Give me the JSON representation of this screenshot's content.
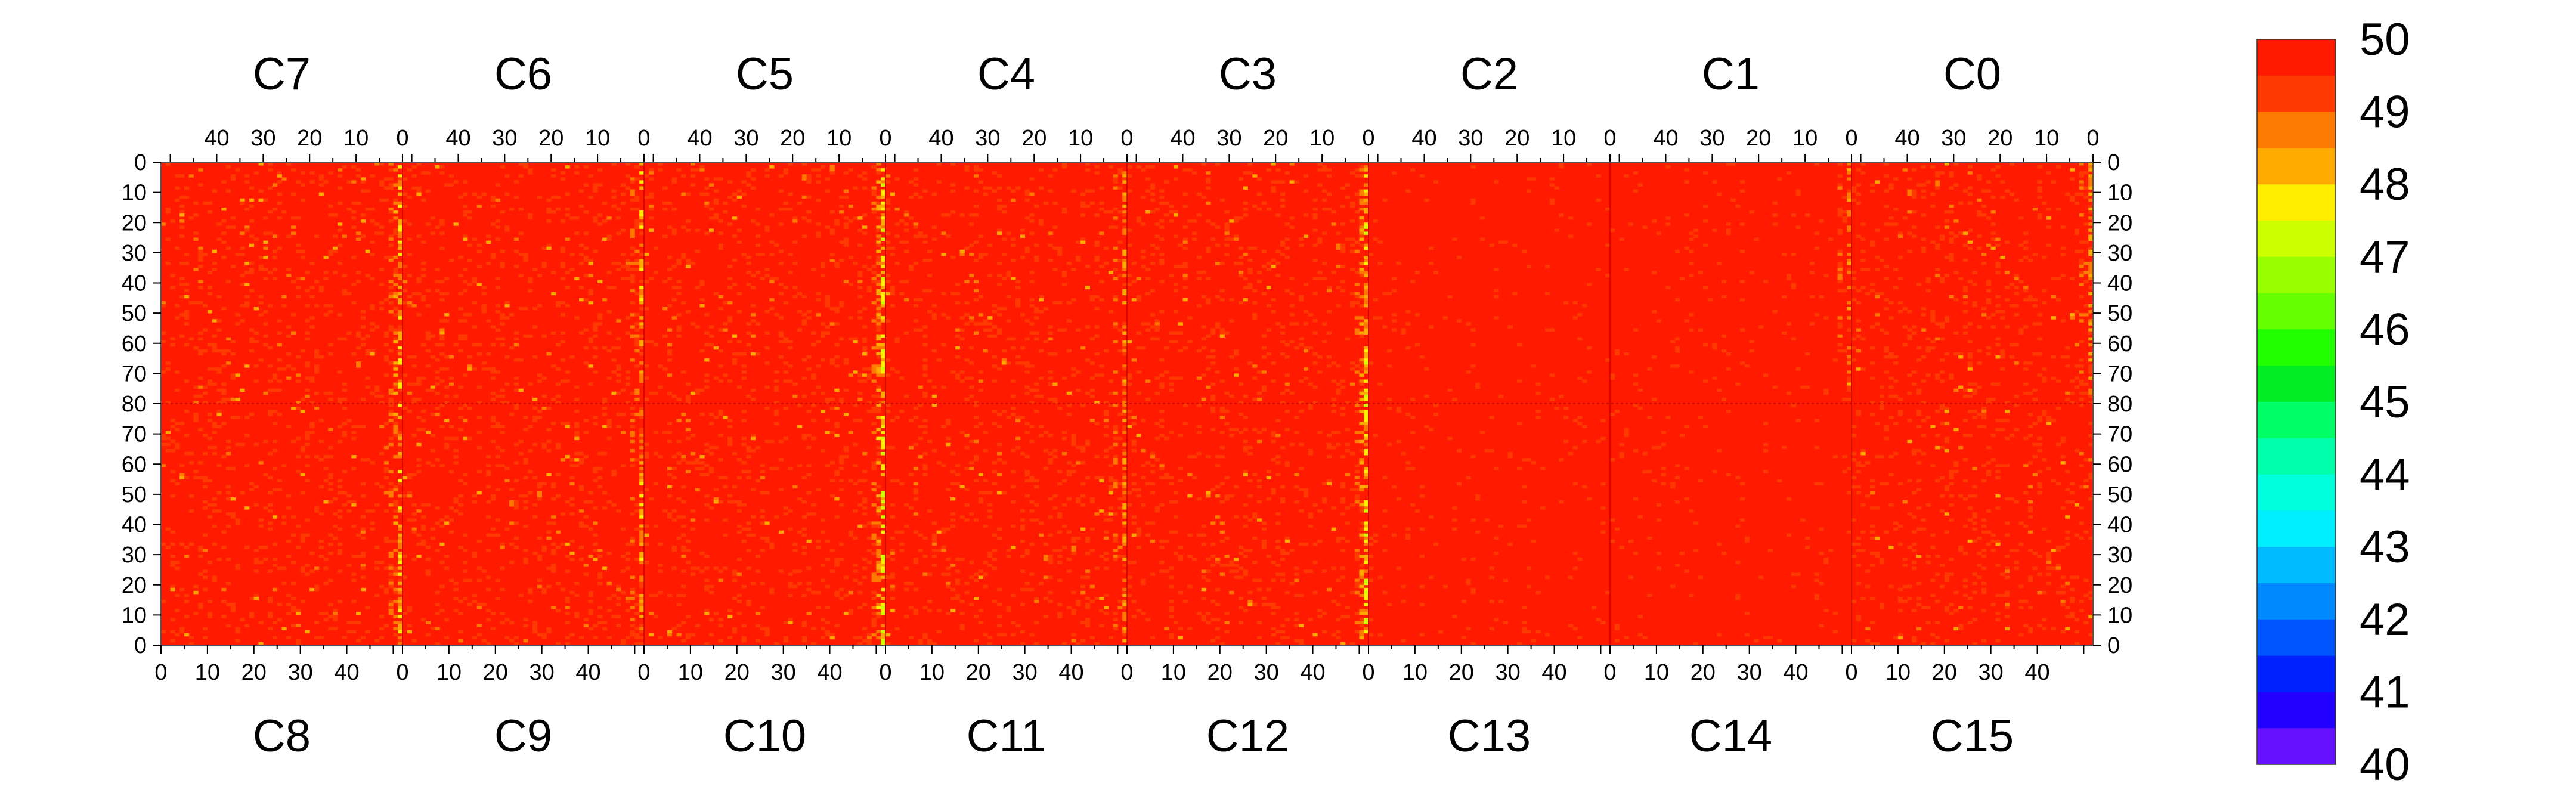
{
  "chart_data": {
    "type": "heatmap",
    "value_range": [
      40,
      50
    ],
    "colorbar": {
      "ticks": [
        "50",
        "49",
        "48",
        "47",
        "46",
        "45",
        "44",
        "43",
        "42",
        "41",
        "40"
      ],
      "levels": [
        {
          "from": 49.5,
          "color": "#ff1a00"
        },
        {
          "from": 49.0,
          "color": "#ff3a00"
        },
        {
          "from": 48.5,
          "color": "#ff7a00"
        },
        {
          "from": 48.0,
          "color": "#ffaa00"
        },
        {
          "from": 47.5,
          "color": "#ffee00"
        },
        {
          "from": 47.0,
          "color": "#ccff00"
        },
        {
          "from": 46.5,
          "color": "#99ff00"
        },
        {
          "from": 46.0,
          "color": "#66ff00"
        },
        {
          "from": 45.5,
          "color": "#22ff00"
        },
        {
          "from": 45.0,
          "color": "#00ee22"
        },
        {
          "from": 44.5,
          "color": "#00ff66"
        },
        {
          "from": 44.0,
          "color": "#00ffaa"
        },
        {
          "from": 43.5,
          "color": "#00ffdd"
        },
        {
          "from": 43.0,
          "color": "#00eeff"
        },
        {
          "from": 42.5,
          "color": "#00bbff"
        },
        {
          "from": 42.0,
          "color": "#0088ff"
        },
        {
          "from": 41.5,
          "color": "#0055ff"
        },
        {
          "from": 41.0,
          "color": "#0022ff"
        },
        {
          "from": 40.5,
          "color": "#2200ff"
        },
        {
          "from": 40.0,
          "color": "#6611ff"
        }
      ]
    },
    "chips_top": [
      "C7",
      "C6",
      "C5",
      "C4",
      "C3",
      "C2",
      "C1",
      "C0"
    ],
    "chips_bottom": [
      "C8",
      "C9",
      "C10",
      "C11",
      "C12",
      "C13",
      "C14",
      "C15"
    ],
    "columns_per_chip": 52,
    "rows_per_chip": 80,
    "top_x_ticks": [
      40,
      30,
      20,
      10,
      0
    ],
    "bottom_x_ticks": [
      0,
      10,
      20,
      30,
      40
    ],
    "left_y_ticks_top": [
      0,
      10,
      20,
      30,
      40,
      50,
      60,
      70,
      80
    ],
    "left_y_ticks_bottom": [
      70,
      60,
      50,
      40,
      30,
      20,
      10,
      0
    ],
    "right_y_ticks_top": [
      0,
      10,
      20,
      30,
      40,
      50,
      60,
      70,
      80
    ],
    "right_y_ticks_bottom": [
      70,
      60,
      50,
      40,
      30,
      20,
      10,
      0
    ],
    "typical_value": 49.8,
    "hot_columns": [
      {
        "chip": "C7",
        "col": 0,
        "mean": 48.3
      },
      {
        "chip": "C6",
        "col": 0,
        "mean": 48.6
      },
      {
        "chip": "C5",
        "col": 0,
        "mean": 48.0
      },
      {
        "chip": "C4",
        "col": 0,
        "mean": 48.9
      },
      {
        "chip": "C3",
        "col": 0,
        "mean": 48.2
      },
      {
        "chip": "C1",
        "col": 0,
        "mean": 49.1
      },
      {
        "chip": "C0",
        "col": 0,
        "mean": 48.8
      },
      {
        "chip": "C8",
        "col": 52,
        "mean": 48.4
      },
      {
        "chip": "C9",
        "col": 52,
        "mean": 48.7
      },
      {
        "chip": "C10",
        "col": 52,
        "mean": 47.8
      },
      {
        "chip": "C11",
        "col": 52,
        "mean": 48.8
      },
      {
        "chip": "C12",
        "col": 52,
        "mean": 48.1
      }
    ]
  }
}
